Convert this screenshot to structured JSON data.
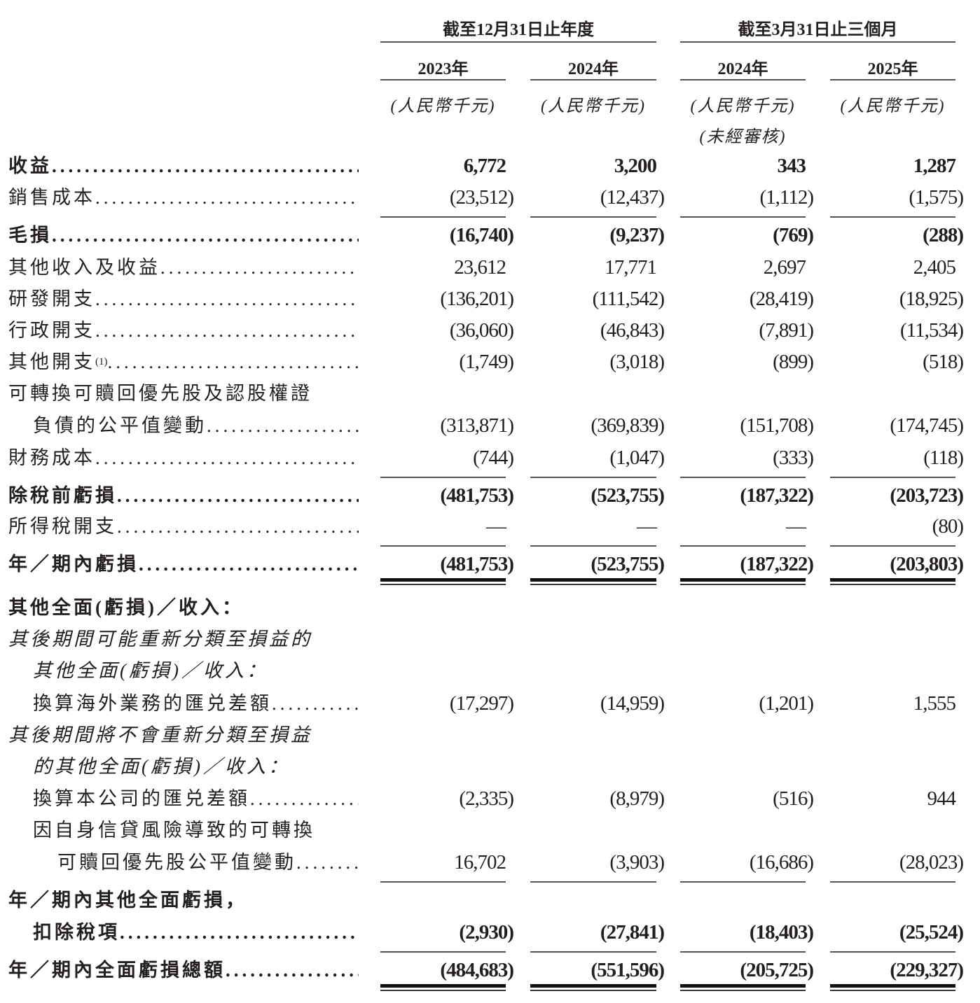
{
  "header": {
    "group1": "截至12月31日止年度",
    "group2": "截至3月31日止三個月",
    "columns": [
      {
        "year": "2023年",
        "unit": "(人民幣千元)",
        "note": ""
      },
      {
        "year": "2024年",
        "unit": "(人民幣千元)",
        "note": ""
      },
      {
        "year": "2024年",
        "unit": "(人民幣千元)",
        "note": "(未經審核)"
      },
      {
        "year": "2025年",
        "unit": "(人民幣千元)",
        "note": ""
      }
    ]
  },
  "rows": [
    {
      "label": "收益",
      "style": "bold",
      "indent": 0,
      "dots": true,
      "values": [
        "6,772",
        "3,200",
        "343",
        "1,287"
      ]
    },
    {
      "label": "銷售成本",
      "indent": 0,
      "dots": true,
      "values": [
        "(23,512)",
        "(12,437)",
        "(1,112)",
        "(1,575)"
      ],
      "rule_after": "single"
    },
    {
      "label": "毛損",
      "style": "bold",
      "indent": 0,
      "dots": true,
      "values": [
        "(16,740)",
        "(9,237)",
        "(769)",
        "(288)"
      ]
    },
    {
      "label": "其他收入及收益",
      "indent": 0,
      "dots": true,
      "values": [
        "23,612",
        "17,771",
        "2,697",
        "2,405"
      ]
    },
    {
      "label": "研發開支",
      "indent": 0,
      "dots": true,
      "values": [
        "(136,201)",
        "(111,542)",
        "(28,419)",
        "(18,925)"
      ]
    },
    {
      "label": "行政開支",
      "indent": 0,
      "dots": true,
      "values": [
        "(36,060)",
        "(46,843)",
        "(7,891)",
        "(11,534)"
      ]
    },
    {
      "label": "其他開支",
      "footnote": "(1)",
      "indent": 0,
      "dots": true,
      "values": [
        "(1,749)",
        "(3,018)",
        "(899)",
        "(518)"
      ]
    },
    {
      "label": "可轉換可贖回優先股及認股權證",
      "indent": 0,
      "dots": false,
      "values": []
    },
    {
      "label": "負債的公平值變動",
      "indent": 1,
      "dots": true,
      "values": [
        "(313,871)",
        "(369,839)",
        "(151,708)",
        "(174,745)"
      ]
    },
    {
      "label": "財務成本",
      "indent": 0,
      "dots": true,
      "values": [
        "(744)",
        "(1,047)",
        "(333)",
        "(118)"
      ],
      "rule_after": "single"
    },
    {
      "label": "除稅前虧損",
      "style": "bold",
      "indent": 0,
      "dots": true,
      "values": [
        "(481,753)",
        "(523,755)",
        "(187,322)",
        "(203,723)"
      ]
    },
    {
      "label": "所得稅開支",
      "indent": 0,
      "dots": true,
      "values": [
        "—",
        "—",
        "—",
        "(80)"
      ],
      "rule_after": "single"
    },
    {
      "label": "年／期內虧損",
      "style": "bold",
      "indent": 0,
      "dots": true,
      "values": [
        "(481,753)",
        "(523,755)",
        "(187,322)",
        "(203,803)"
      ],
      "rule_after": "double"
    },
    {
      "label": "其他全面(虧損)／收入：",
      "style": "bold",
      "indent": 0,
      "dots": false,
      "values": []
    },
    {
      "label": "其後期間可能重新分類至損益的",
      "style": "italic",
      "indent": 0,
      "dots": false,
      "values": []
    },
    {
      "label": "其他全面(虧損)／收入：",
      "style": "italic",
      "indent": 1,
      "dots": false,
      "values": []
    },
    {
      "label": "換算海外業務的匯兑差額",
      "indent": 1,
      "dots": true,
      "values": [
        "(17,297)",
        "(14,959)",
        "(1,201)",
        "1,555"
      ]
    },
    {
      "label": "其後期間將不會重新分類至損益",
      "style": "italic",
      "indent": 0,
      "dots": false,
      "values": []
    },
    {
      "label": "的其他全面(虧損)／收入：",
      "style": "italic",
      "indent": 1,
      "dots": false,
      "values": []
    },
    {
      "label": "換算本公司的匯兑差額",
      "indent": 1,
      "dots": true,
      "values": [
        "(2,335)",
        "(8,979)",
        "(516)",
        "944"
      ]
    },
    {
      "label": "因自身信貸風險導致的可轉換",
      "indent": 1,
      "dots": false,
      "values": []
    },
    {
      "label": "可贖回優先股公平值變動",
      "indent": 2,
      "dots": true,
      "values": [
        "16,702",
        "(3,903)",
        "(16,686)",
        "(28,023)"
      ],
      "rule_after": "single"
    },
    {
      "label": "年／期內其他全面虧損，",
      "style": "bold",
      "indent": 0,
      "dots": false,
      "values": []
    },
    {
      "label": "扣除稅項",
      "style": "bold",
      "indent": 1,
      "dots": true,
      "values": [
        "(2,930)",
        "(27,841)",
        "(18,403)",
        "(25,524)"
      ],
      "rule_after": "single"
    },
    {
      "label": "年／期內全面虧損總額",
      "style": "bold",
      "indent": 0,
      "dots": true,
      "values": [
        "(484,683)",
        "(551,596)",
        "(205,725)",
        "(229,327)"
      ],
      "rule_after": "double"
    }
  ]
}
